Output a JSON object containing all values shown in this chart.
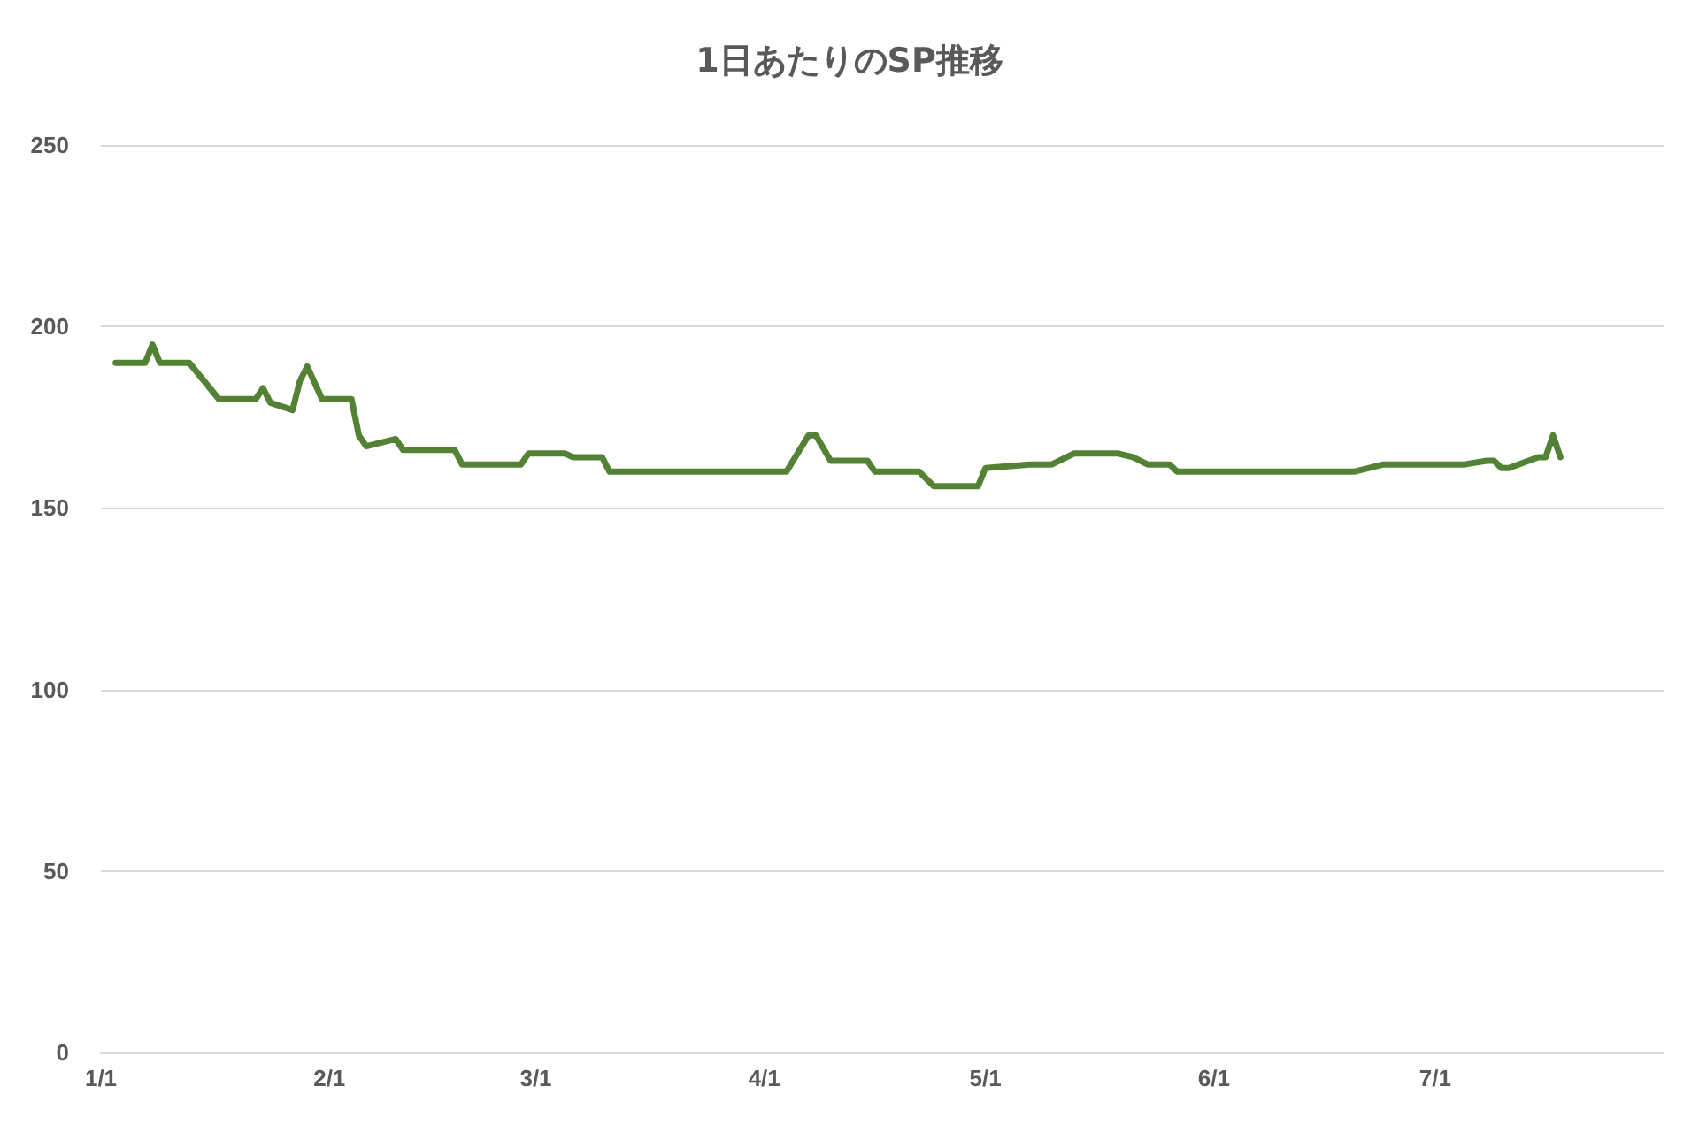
{
  "chart_data": {
    "type": "line",
    "title": "1日あたりのSP推移",
    "x": [
      "--01-03",
      "--01-07",
      "--01-08",
      "--01-09",
      "--01-13",
      "--01-17",
      "--01-22",
      "--01-23",
      "--01-24",
      "--01-27",
      "--01-28",
      "--01-29",
      "--01-31",
      "--02-04",
      "--02-05",
      "--02-06",
      "--02-10",
      "--02-11",
      "--02-18",
      "--02-19",
      "--02-27",
      "--02-28",
      "--03-05",
      "--03-06",
      "--03-10",
      "--03-11",
      "--04-04",
      "--04-07",
      "--04-08",
      "--04-10",
      "--04-15",
      "--04-16",
      "--04-22",
      "--04-24",
      "--04-30",
      "--05-01",
      "--05-07",
      "--05-10",
      "--05-13",
      "--05-19",
      "--05-21",
      "--05-23",
      "--05-26",
      "--05-27",
      "--06-20",
      "--06-24",
      "--07-05",
      "--07-08",
      "--07-09",
      "--07-10",
      "--07-11",
      "--07-15",
      "--07-16",
      "--07-17",
      "--07-18"
    ],
    "series": [
      {
        "color": "#548235",
        "values": [
          190,
          190,
          195,
          190,
          190,
          180,
          180,
          183,
          179,
          177,
          185,
          189,
          180,
          180,
          170,
          167,
          169,
          166,
          166,
          162,
          162,
          165,
          165,
          164,
          164,
          160,
          160,
          170,
          170,
          163,
          163,
          160,
          160,
          156,
          156,
          161,
          162,
          162,
          165,
          165,
          164,
          162,
          162,
          160,
          160,
          162,
          162,
          163,
          163,
          161,
          161,
          164,
          164,
          170,
          164
        ]
      }
    ],
    "xlim": [
      "--01-01",
      "--08-01"
    ],
    "xticks": [
      {
        "value": "--01-01",
        "label": "1/1"
      },
      {
        "value": "--02-01",
        "label": "2/1"
      },
      {
        "value": "--03-01",
        "label": "3/1"
      },
      {
        "value": "--04-01",
        "label": "4/1"
      },
      {
        "value": "--05-01",
        "label": "5/1"
      },
      {
        "value": "--06-01",
        "label": "6/1"
      },
      {
        "value": "--07-01",
        "label": "7/1"
      }
    ],
    "ylim": [
      0,
      250
    ],
    "yticks": [
      0,
      50,
      100,
      150,
      200,
      250
    ],
    "grid": "y",
    "marker": "none",
    "line_style": "solid"
  }
}
